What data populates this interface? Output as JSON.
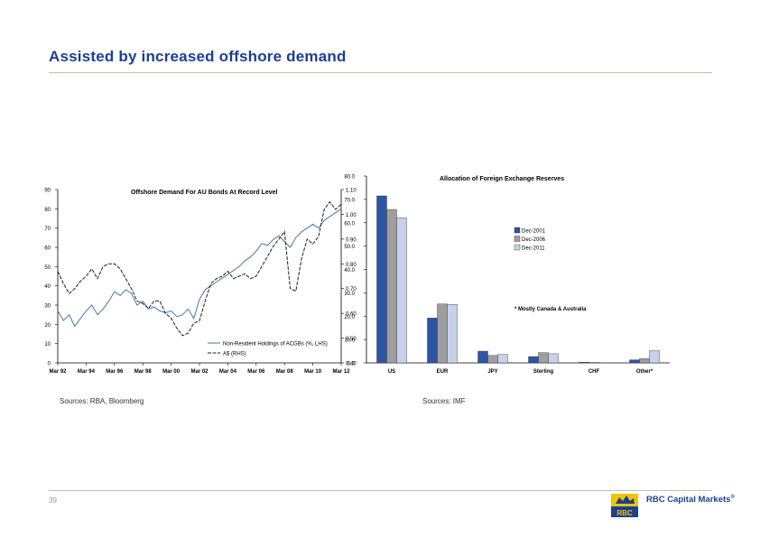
{
  "page": {
    "title": "Assisted by increased offshore demand",
    "page_number": "39",
    "left_source": "Sources: RBA, Bloomberg",
    "right_source": "Sources: IMF",
    "brand": {
      "name": "RBC Capital Markets",
      "trademark": "®",
      "logo_text": "RBC"
    }
  },
  "colors": {
    "title": "#1c3f94",
    "rule": "#c8c0a8",
    "dec2001": "#2e54a4",
    "dec2006": "#9e9e9e",
    "dec2011": "#c6d2ea"
  },
  "chart_data": [
    {
      "type": "line",
      "title": "Offshore Demand For AU Bonds At Record Level",
      "x_ticks": [
        "Mar 92",
        "Mar 94",
        "Mar 96",
        "Mar 98",
        "Mar 00",
        "Mar 02",
        "Mar 04",
        "Mar 06",
        "Mar 08",
        "Mar 10",
        "Mar 12"
      ],
      "x_range": [
        1992.2,
        2012.2
      ],
      "y_left": {
        "range": [
          0,
          90
        ],
        "ticks": [
          "0",
          "10",
          "20",
          "30",
          "40",
          "50",
          "60",
          "70",
          "80",
          "90"
        ]
      },
      "y_right": {
        "range": [
          0.4,
          1.1
        ],
        "ticks": [
          "0.40",
          "0.50",
          "0.60",
          "0.70",
          "0.80",
          "0.90",
          "1.00",
          "1.10"
        ]
      },
      "legend": {
        "position": "bottom-right"
      },
      "series": [
        {
          "name": "Non-Resident Holdings of ACGBs (%, LHS)",
          "axis": "left",
          "color": "#4a76a8",
          "x": [
            1992.2,
            1992.6,
            1993.0,
            1993.4,
            1993.8,
            1994.2,
            1994.6,
            1995.0,
            1995.4,
            1995.8,
            1996.2,
            1996.6,
            1997.0,
            1997.4,
            1997.8,
            1998.2,
            1998.6,
            1999.0,
            1999.4,
            1999.8,
            2000.2,
            2000.6,
            2001.0,
            2001.4,
            2001.8,
            2002.2,
            2002.6,
            2003.0,
            2003.4,
            2003.8,
            2004.2,
            2004.6,
            2005.0,
            2005.4,
            2005.8,
            2006.2,
            2006.6,
            2007.0,
            2007.4,
            2007.8,
            2008.2,
            2008.6,
            2009.0,
            2009.4,
            2009.8,
            2010.2,
            2010.6,
            2011.0,
            2011.4,
            2011.8,
            2012.2
          ],
          "y": [
            27,
            22,
            25,
            19,
            23,
            27,
            30,
            25,
            28,
            32,
            37,
            35,
            38,
            36,
            30,
            32,
            28,
            29,
            27,
            26,
            27,
            24,
            25,
            28,
            23,
            33,
            38,
            40,
            42,
            44,
            46,
            48,
            50,
            53,
            55,
            58,
            62,
            61,
            64,
            66,
            63,
            60,
            65,
            68,
            70,
            72,
            70,
            74,
            76,
            78,
            80
          ]
        },
        {
          "name": "A$ (RHS)",
          "axis": "right",
          "color": "#1f1f1f",
          "x": [
            1992.2,
            1992.6,
            1993.0,
            1993.4,
            1993.8,
            1994.2,
            1994.6,
            1995.0,
            1995.4,
            1995.8,
            1996.2,
            1996.6,
            1997.0,
            1997.4,
            1997.8,
            1998.2,
            1998.6,
            1999.0,
            1999.4,
            1999.8,
            2000.2,
            2000.6,
            2001.0,
            2001.4,
            2001.8,
            2002.2,
            2002.6,
            2003.0,
            2003.4,
            2003.8,
            2004.2,
            2004.6,
            2005.0,
            2005.4,
            2005.8,
            2006.2,
            2006.6,
            2007.0,
            2007.4,
            2007.8,
            2008.2,
            2008.6,
            2009.0,
            2009.4,
            2009.8,
            2010.2,
            2010.6,
            2011.0,
            2011.4,
            2011.8,
            2012.2
          ],
          "y": [
            0.77,
            0.72,
            0.68,
            0.7,
            0.73,
            0.75,
            0.78,
            0.74,
            0.79,
            0.8,
            0.8,
            0.78,
            0.74,
            0.7,
            0.65,
            0.64,
            0.62,
            0.65,
            0.65,
            0.6,
            0.58,
            0.54,
            0.51,
            0.52,
            0.56,
            0.57,
            0.65,
            0.72,
            0.74,
            0.75,
            0.77,
            0.74,
            0.75,
            0.76,
            0.74,
            0.75,
            0.79,
            0.83,
            0.87,
            0.9,
            0.93,
            0.7,
            0.69,
            0.82,
            0.9,
            0.88,
            0.91,
            1.02,
            1.05,
            1.02,
            1.04
          ]
        }
      ]
    },
    {
      "type": "bar",
      "title": "Allocation of Foreign Exchange Reserves",
      "categories": [
        "US",
        "EUR",
        "JPY",
        "Sterling",
        "CHF",
        "Other*"
      ],
      "ylim": [
        0,
        80
      ],
      "y_ticks": [
        "0.0",
        "10.0",
        "20.0",
        "30.0",
        "40.0",
        "50.0",
        "60.0",
        "70.0",
        "80.0"
      ],
      "legend": {
        "position": "right"
      },
      "note": "* Mostly Canada & Australia",
      "series": [
        {
          "name": "Dec-2001",
          "color": "#2e54a4",
          "values": [
            71.5,
            19.2,
            5.0,
            2.7,
            0.3,
            1.3
          ]
        },
        {
          "name": "Dec-2006",
          "color": "#9e9e9e",
          "values": [
            65.7,
            25.2,
            3.2,
            4.4,
            0.2,
            1.8
          ]
        },
        {
          "name": "Dec-2011",
          "color": "#c6d2ea",
          "values": [
            62.1,
            25.0,
            3.6,
            3.9,
            0.1,
            5.2
          ]
        }
      ]
    }
  ]
}
